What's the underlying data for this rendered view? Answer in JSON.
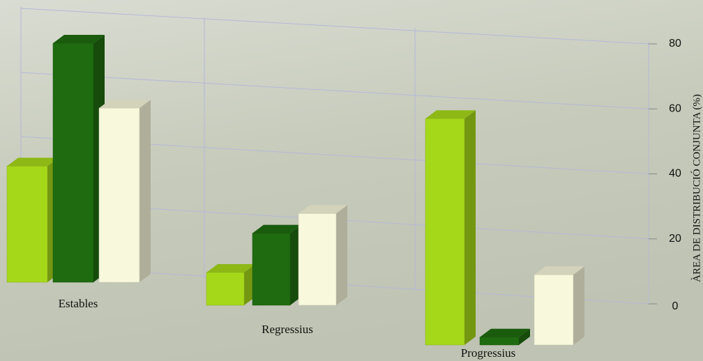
{
  "chart_data": {
    "type": "bar3d",
    "y_label": "ÀREA DE DISTRIBUCIÓ CONJUNTA (%)",
    "categories": [
      "Estables",
      "Regressius",
      "Progressius"
    ],
    "series": [
      {
        "color": "#a6d81a",
        "values": [
          34,
          10,
          58
        ]
      },
      {
        "color": "#1f6b10",
        "values": [
          70,
          22,
          2
        ]
      },
      {
        "color": "#f8f8dc",
        "values": [
          51,
          28,
          18
        ]
      }
    ],
    "ylim": [
      0,
      80
    ],
    "yticks": [
      0,
      20,
      40,
      60,
      80
    ],
    "grid": true
  }
}
